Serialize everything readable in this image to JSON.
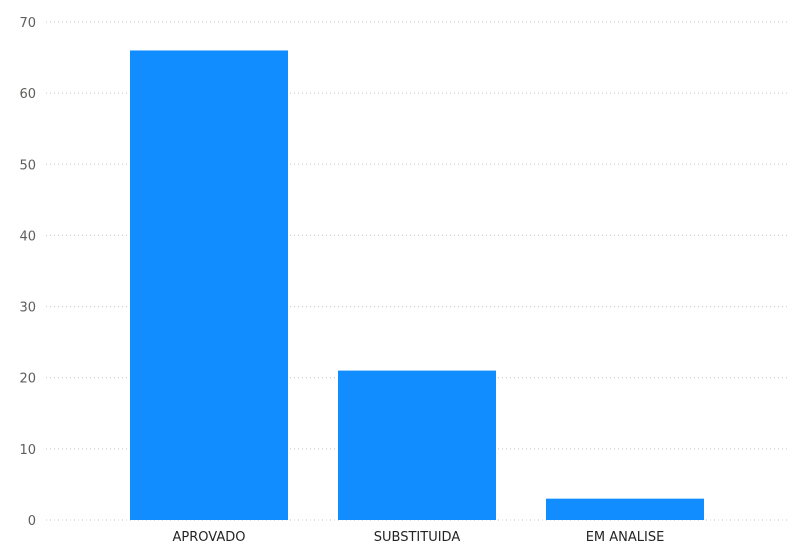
{
  "chart_data": {
    "type": "bar",
    "categories": [
      "APROVADO",
      "SUBSTITUIDA",
      "EM ANALISE"
    ],
    "values": [
      66,
      21,
      3
    ],
    "ylim": [
      0,
      70
    ],
    "yticks": [
      0,
      10,
      20,
      30,
      40,
      50,
      60,
      70
    ],
    "grid": true,
    "bar_color": "#118dff",
    "grid_color": "#c8c6c4"
  }
}
